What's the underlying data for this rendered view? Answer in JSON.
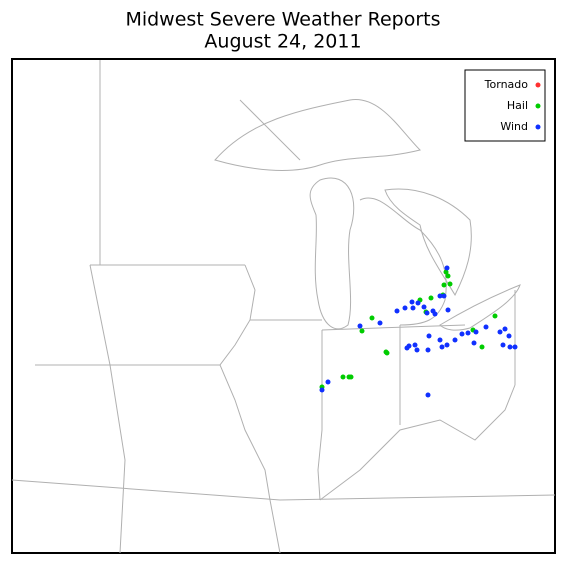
{
  "title": "Midwest Severe Weather Reports",
  "subtitle": "August 24, 2011",
  "legend": [
    {
      "label": "Tornado",
      "color": "#ff3030"
    },
    {
      "label": "Hail",
      "color": "#00cc00"
    },
    {
      "label": "Wind",
      "color": "#1030ff"
    }
  ]
}
